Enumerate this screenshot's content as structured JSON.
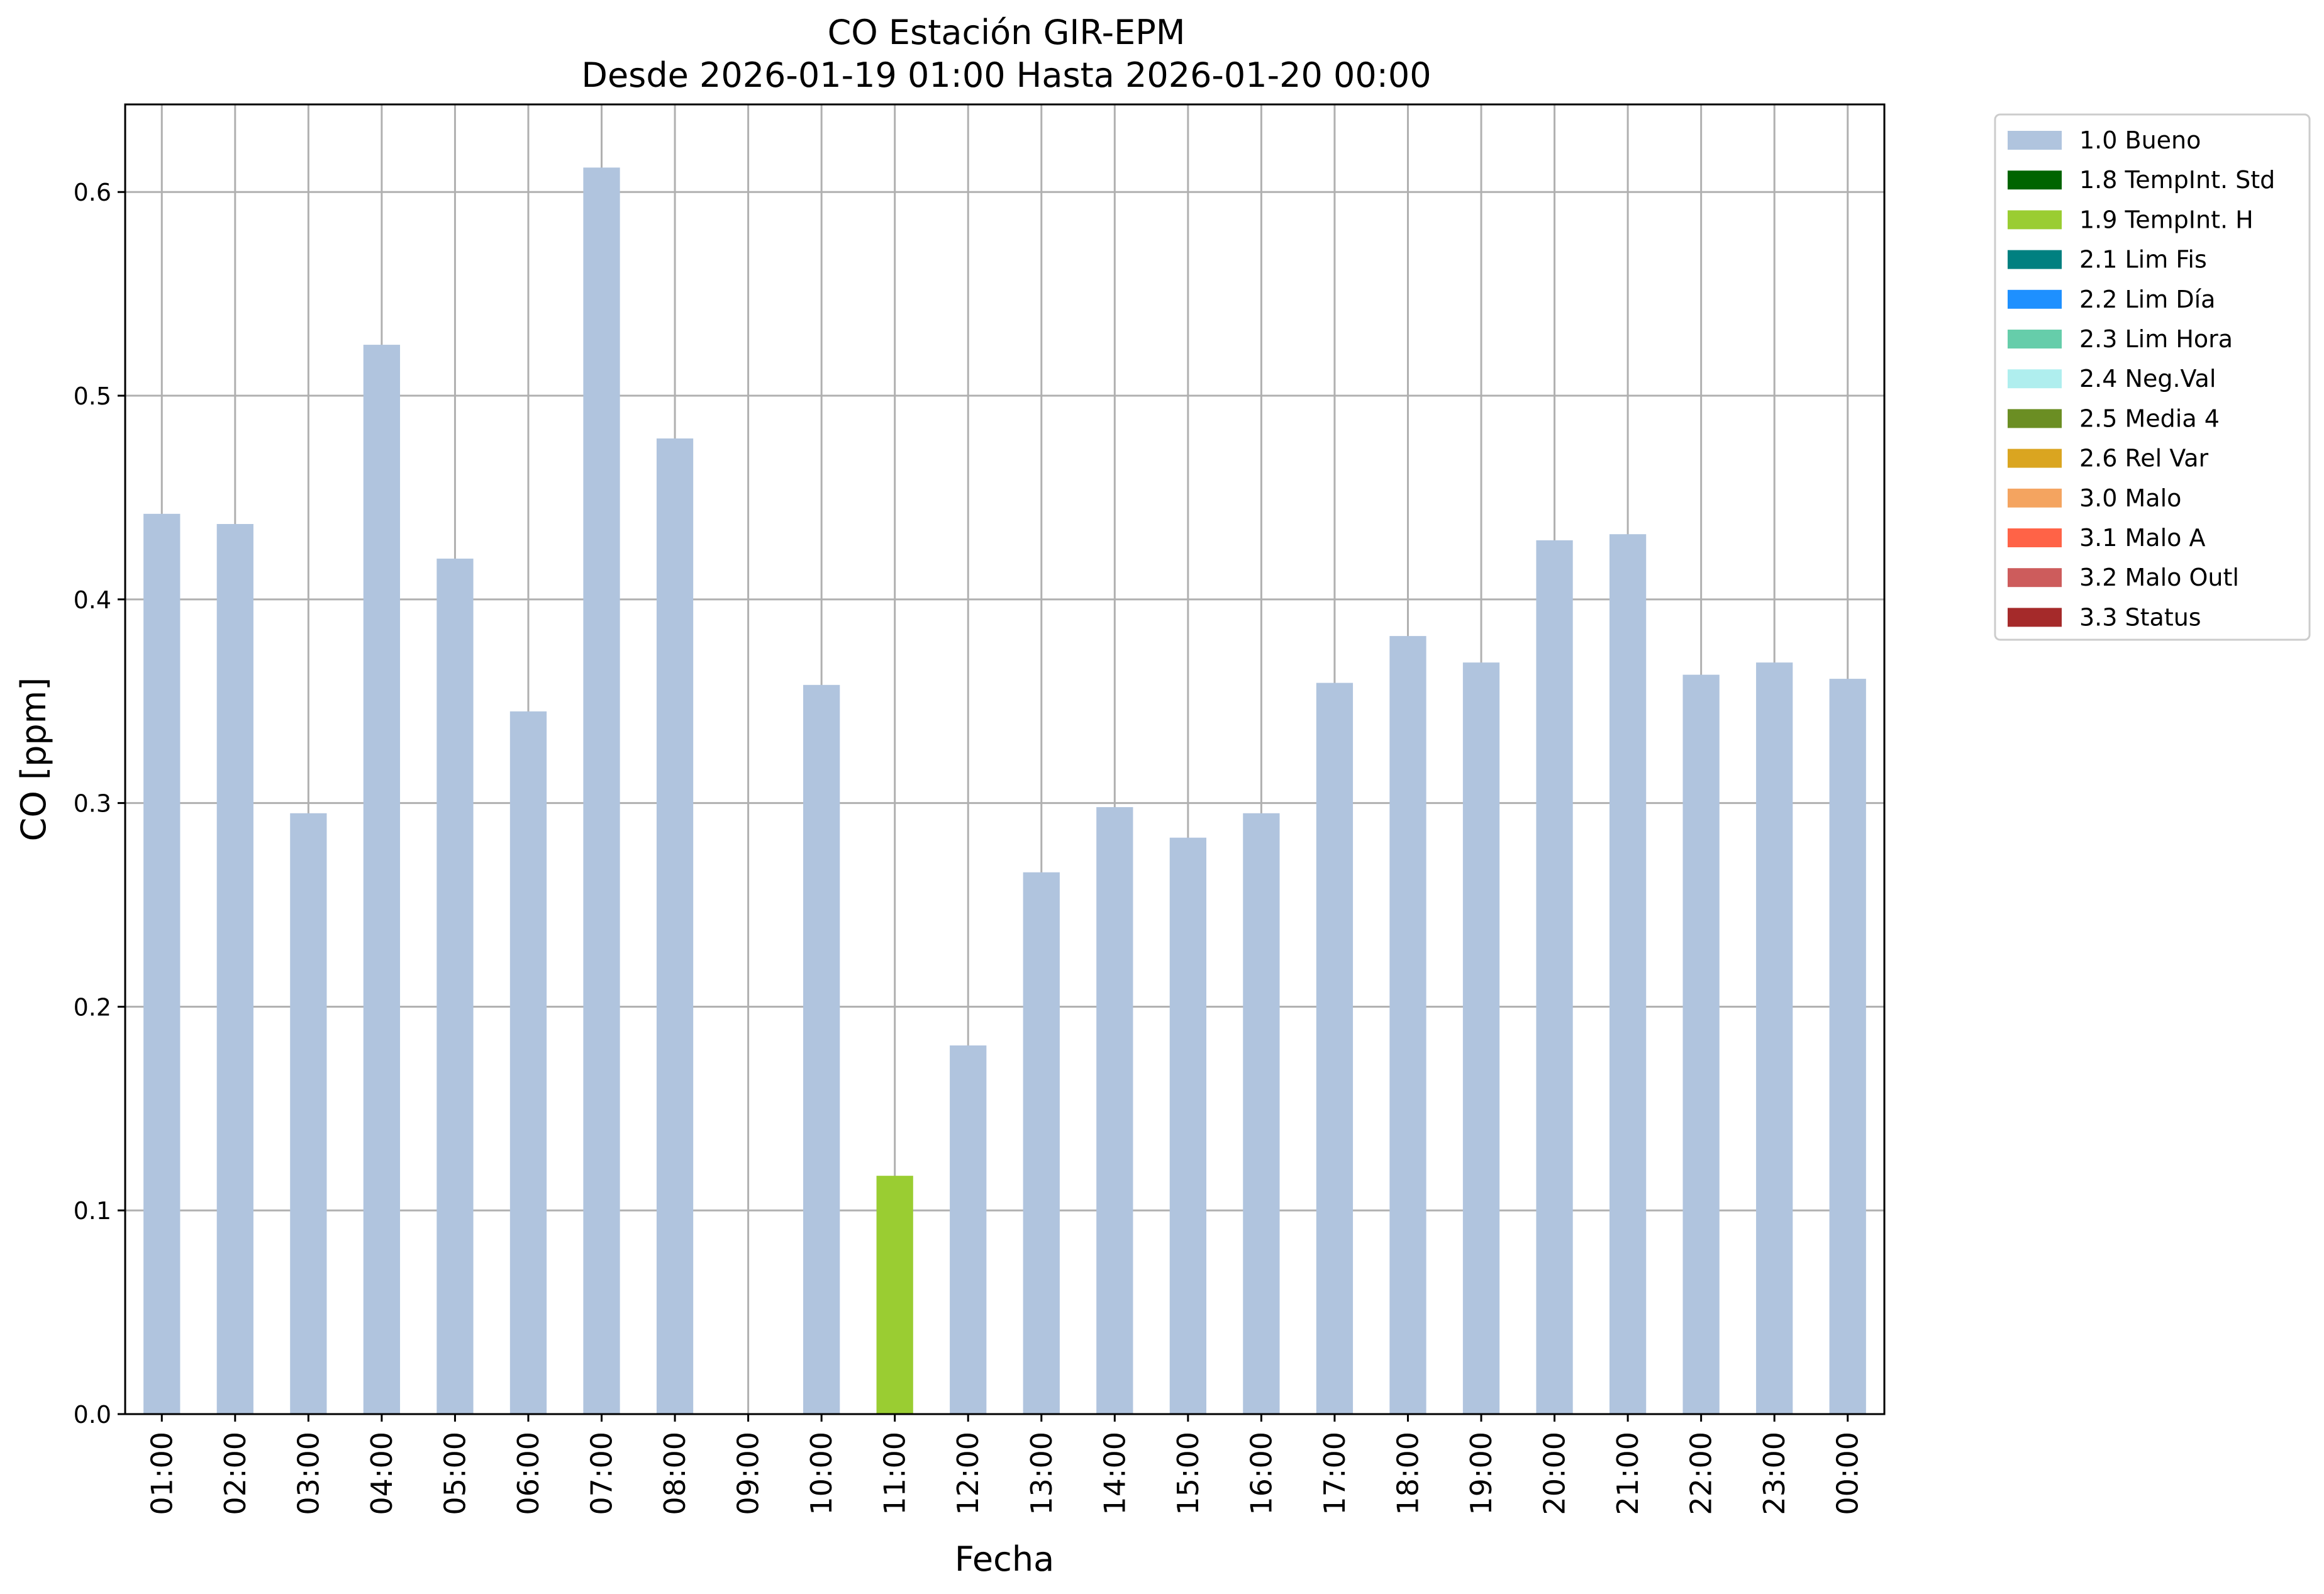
{
  "chart_data": {
    "type": "bar",
    "title": "CO Estación GIR-EPM",
    "subtitle": "Desde 2026-01-19 01:00 Hasta 2026-01-20 00:00",
    "xlabel": "Fecha",
    "ylabel": "CO [ppm]",
    "ylim": [
      0,
      0.643
    ],
    "yticks": [
      "0.0",
      "0.1",
      "0.2",
      "0.3",
      "0.4",
      "0.5",
      "0.6"
    ],
    "grid": true,
    "legend_position": "outside-top-right",
    "categories": [
      "01:00",
      "02:00",
      "03:00",
      "04:00",
      "05:00",
      "06:00",
      "07:00",
      "08:00",
      "09:00",
      "10:00",
      "11:00",
      "12:00",
      "13:00",
      "14:00",
      "15:00",
      "16:00",
      "17:00",
      "18:00",
      "19:00",
      "20:00",
      "21:00",
      "22:00",
      "23:00",
      "00:00"
    ],
    "values": [
      0.442,
      0.437,
      0.295,
      0.525,
      0.42,
      0.345,
      0.612,
      0.479,
      null,
      0.358,
      0.117,
      0.181,
      0.266,
      0.298,
      0.283,
      0.295,
      0.359,
      0.382,
      0.369,
      0.429,
      0.432,
      0.363,
      0.369,
      0.361
    ],
    "flags": [
      "1.0 Bueno",
      "1.0 Bueno",
      "1.0 Bueno",
      "1.0 Bueno",
      "1.0 Bueno",
      "1.0 Bueno",
      "1.0 Bueno",
      "1.0 Bueno",
      null,
      "1.0 Bueno",
      "1.9 TempInt. H",
      "1.0 Bueno",
      "1.0 Bueno",
      "1.0 Bueno",
      "1.0 Bueno",
      "1.0 Bueno",
      "1.0 Bueno",
      "1.0 Bueno",
      "1.0 Bueno",
      "1.0 Bueno",
      "1.0 Bueno",
      "1.0 Bueno",
      "1.0 Bueno",
      "1.0 Bueno"
    ],
    "legend": [
      {
        "label": "1.0 Bueno",
        "color": "#b0c4de"
      },
      {
        "label": "1.8 TempInt. Std",
        "color": "#006400"
      },
      {
        "label": "1.9 TempInt. H",
        "color": "#9acd32"
      },
      {
        "label": "2.1 Lim Fis",
        "color": "#008080"
      },
      {
        "label": "2.2 Lim Día",
        "color": "#1e90ff"
      },
      {
        "label": "2.3 Lim Hora",
        "color": "#66cdaa"
      },
      {
        "label": "2.4 Neg.Val",
        "color": "#afeeee"
      },
      {
        "label": "2.5 Media 4",
        "color": "#6b8e23"
      },
      {
        "label": "2.6 Rel Var",
        "color": "#daa520"
      },
      {
        "label": "3.0 Malo",
        "color": "#f4a460"
      },
      {
        "label": "3.1 Malo A",
        "color": "#ff6347"
      },
      {
        "label": "3.2 Malo Outl",
        "color": "#cd5c5c"
      },
      {
        "label": "3.3 Status",
        "color": "#a52a2a"
      }
    ]
  }
}
